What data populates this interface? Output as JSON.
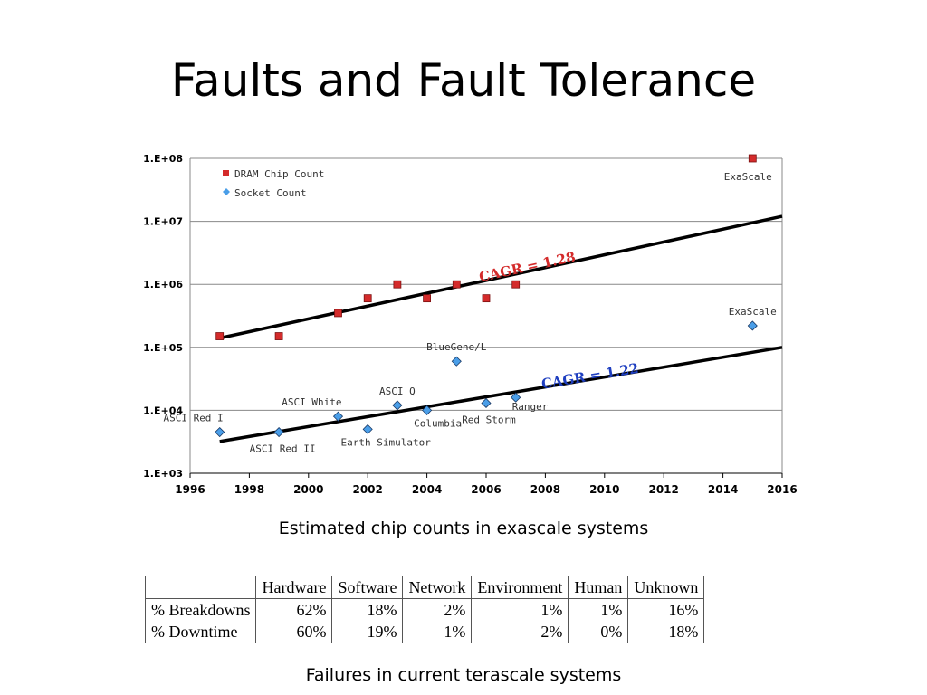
{
  "slide": {
    "title": "Faults and Fault Tolerance",
    "caption_chart": "Estimated chip counts in exascale systems",
    "caption_table": "Failures in current terascale systems"
  },
  "chart_data": {
    "type": "scatter",
    "y_scale": "log",
    "xlim": [
      1996,
      2016
    ],
    "ylim": [
      1000,
      100000000
    ],
    "x_ticks": [
      "1996",
      "1998",
      "2000",
      "2002",
      "2004",
      "2006",
      "2008",
      "2010",
      "2012",
      "2014",
      "2016"
    ],
    "y_ticks": [
      "1.E+03",
      "1.E+04",
      "1.E+05",
      "1.E+06",
      "1.E+07",
      "1.E+08"
    ],
    "grid": "horizontal",
    "legend_position": "top-left",
    "series": [
      {
        "name": "DRAM Chip Count",
        "color": "#d42b2b",
        "marker": "square",
        "points": [
          {
            "x": 1997,
            "y": 150000
          },
          {
            "x": 1999,
            "y": 150000
          },
          {
            "x": 2001,
            "y": 350000
          },
          {
            "x": 2002,
            "y": 600000
          },
          {
            "x": 2003,
            "y": 1000000
          },
          {
            "x": 2004,
            "y": 600000
          },
          {
            "x": 2005,
            "y": 1000000
          },
          {
            "x": 2006,
            "y": 600000
          },
          {
            "x": 2007,
            "y": 1000000
          },
          {
            "x": 2015,
            "y": 100000000
          }
        ],
        "trend": {
          "label": "CAGR = 1.28",
          "label_color": "#d42b2b",
          "from": {
            "x": 1997,
            "y": 140000
          },
          "to": {
            "x": 2016,
            "y": 12000000
          }
        }
      },
      {
        "name": "Socket Count",
        "color": "#4a9ee8",
        "marker": "diamond",
        "points": [
          {
            "x": 1997,
            "y": 4500
          },
          {
            "x": 1999,
            "y": 4500
          },
          {
            "x": 2001,
            "y": 8000
          },
          {
            "x": 2002,
            "y": 5000
          },
          {
            "x": 2003,
            "y": 12000
          },
          {
            "x": 2004,
            "y": 10000
          },
          {
            "x": 2005,
            "y": 60000
          },
          {
            "x": 2006,
            "y": 13000
          },
          {
            "x": 2007,
            "y": 16000
          },
          {
            "x": 2015,
            "y": 220000
          }
        ],
        "trend": {
          "label": "CAGR = 1.22",
          "label_color": "#1f3fc0",
          "from": {
            "x": 1997,
            "y": 3200
          },
          "to": {
            "x": 2016,
            "y": 100000
          }
        }
      }
    ],
    "annotations": [
      {
        "text": "ExaScale",
        "x": 2015,
        "y": 100000000,
        "anchor": "below"
      },
      {
        "text": "ExaScale",
        "x": 2015,
        "y": 220000,
        "anchor": "above"
      },
      {
        "text": "BlueGene/L",
        "x": 2005,
        "y": 60000,
        "anchor": "above"
      },
      {
        "text": "ASCI White",
        "x": 2001,
        "y": 8000,
        "anchor": "above-left"
      },
      {
        "text": "ASCI Q",
        "x": 2003,
        "y": 12000,
        "anchor": "above"
      },
      {
        "text": "ASCI Red I",
        "x": 1997,
        "y": 4500,
        "anchor": "above-left"
      },
      {
        "text": "ASCI Red II",
        "x": 1999,
        "y": 4500,
        "anchor": "below"
      },
      {
        "text": "Earth Simulator",
        "x": 2002,
        "y": 5000,
        "anchor": "below"
      },
      {
        "text": "Columbia",
        "x": 2004,
        "y": 10000,
        "anchor": "below"
      },
      {
        "text": "Red Storm",
        "x": 2006,
        "y": 13000,
        "anchor": "below"
      },
      {
        "text": "Ranger",
        "x": 2007,
        "y": 16000,
        "anchor": "below-right"
      }
    ]
  },
  "table": {
    "headers": [
      "",
      "Hardware",
      "Software",
      "Network",
      "Environment",
      "Human",
      "Unknown"
    ],
    "rows": [
      {
        "label": "% Breakdowns",
        "values": [
          "62%",
          "18%",
          "2%",
          "1%",
          "1%",
          "16%"
        ]
      },
      {
        "label": "% Downtime",
        "values": [
          "60%",
          "19%",
          "1%",
          "2%",
          "0%",
          "18%"
        ]
      }
    ]
  }
}
